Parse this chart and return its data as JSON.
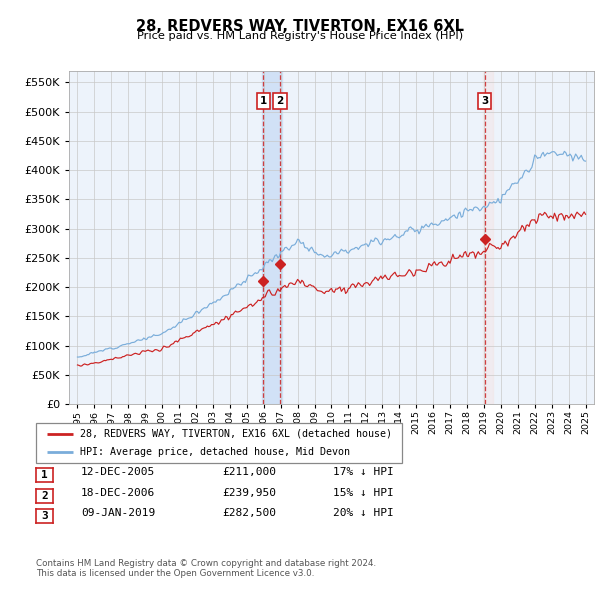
{
  "title": "28, REDVERS WAY, TIVERTON, EX16 6XL",
  "subtitle": "Price paid vs. HM Land Registry's House Price Index (HPI)",
  "legend_line1": "28, REDVERS WAY, TIVERTON, EX16 6XL (detached house)",
  "legend_line2": "HPI: Average price, detached house, Mid Devon",
  "footer1": "Contains HM Land Registry data © Crown copyright and database right 2024.",
  "footer2": "This data is licensed under the Open Government Licence v3.0.",
  "sales": [
    {
      "label": "1",
      "date": "12-DEC-2005",
      "price": 211000,
      "pct": "17%",
      "dir": "↓",
      "x_year": 2005.96
    },
    {
      "label": "2",
      "date": "18-DEC-2006",
      "price": 239950,
      "pct": "15%",
      "dir": "↓",
      "x_year": 2006.96
    },
    {
      "label": "3",
      "date": "09-JAN-2019",
      "price": 282500,
      "pct": "20%",
      "dir": "↓",
      "x_year": 2019.04
    }
  ],
  "ylim": [
    0,
    570000
  ],
  "yticks": [
    0,
    50000,
    100000,
    150000,
    200000,
    250000,
    300000,
    350000,
    400000,
    450000,
    500000,
    550000
  ],
  "xlim_start": 1994.5,
  "xlim_end": 2025.5,
  "hpi_color": "#7aadda",
  "price_color": "#cc2222",
  "chart_bg": "#edf3fb",
  "grid_color": "#c8c8c8",
  "shade1_color": "#c8dcf5",
  "shade3_color": "#f5e0e0"
}
